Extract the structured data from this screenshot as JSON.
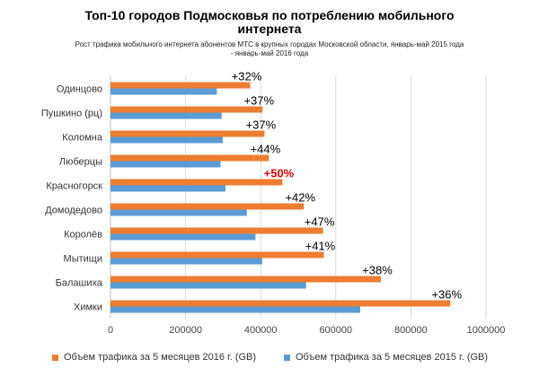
{
  "chart_data": {
    "type": "bar",
    "orientation": "horizontal",
    "title_lines": [
      "Топ-10 городов Подмосковья по потреблению мобильного",
      "интернета"
    ],
    "subtitle_lines": [
      "Рост трафика мобильного интернета абонентов МТС в крупных городах Московской области, январь-май 2015 года",
      "- январь-май 2016 года"
    ],
    "categories": [
      "Одинцово",
      "Пушкино (рц)",
      "Коломна",
      "Люберцы",
      "Красногорск",
      "Домодедово",
      "Королёв",
      "Мытищи",
      "Балашиха",
      "Химки"
    ],
    "series": [
      {
        "name": "Объем трафика за 5 месяцев 2016 г. (GB)",
        "color": "#ED7D31",
        "values": [
          372000,
          405000,
          410000,
          422000,
          458000,
          515000,
          566000,
          568000,
          720000,
          905000
        ]
      },
      {
        "name": "Объем трафика за 5 месяцев 2015 г. (GB)",
        "color": "#5B9BD5",
        "values": [
          283000,
          296000,
          299000,
          293000,
          306000,
          363000,
          386000,
          404000,
          521000,
          665000
        ]
      }
    ],
    "data_labels": [
      "+32%",
      "+37%",
      "+37%",
      "+44%",
      "+50%",
      "+42%",
      "+47%",
      "+41%",
      "+38%",
      "+36%"
    ],
    "highlight": {
      "index": 4,
      "color": "#E00000"
    },
    "xlim": [
      0,
      1000000
    ],
    "xticks": [
      "0",
      "200000",
      "400000",
      "600000",
      "800000",
      "1000000"
    ],
    "grid": true,
    "legend_position": "bottom"
  }
}
